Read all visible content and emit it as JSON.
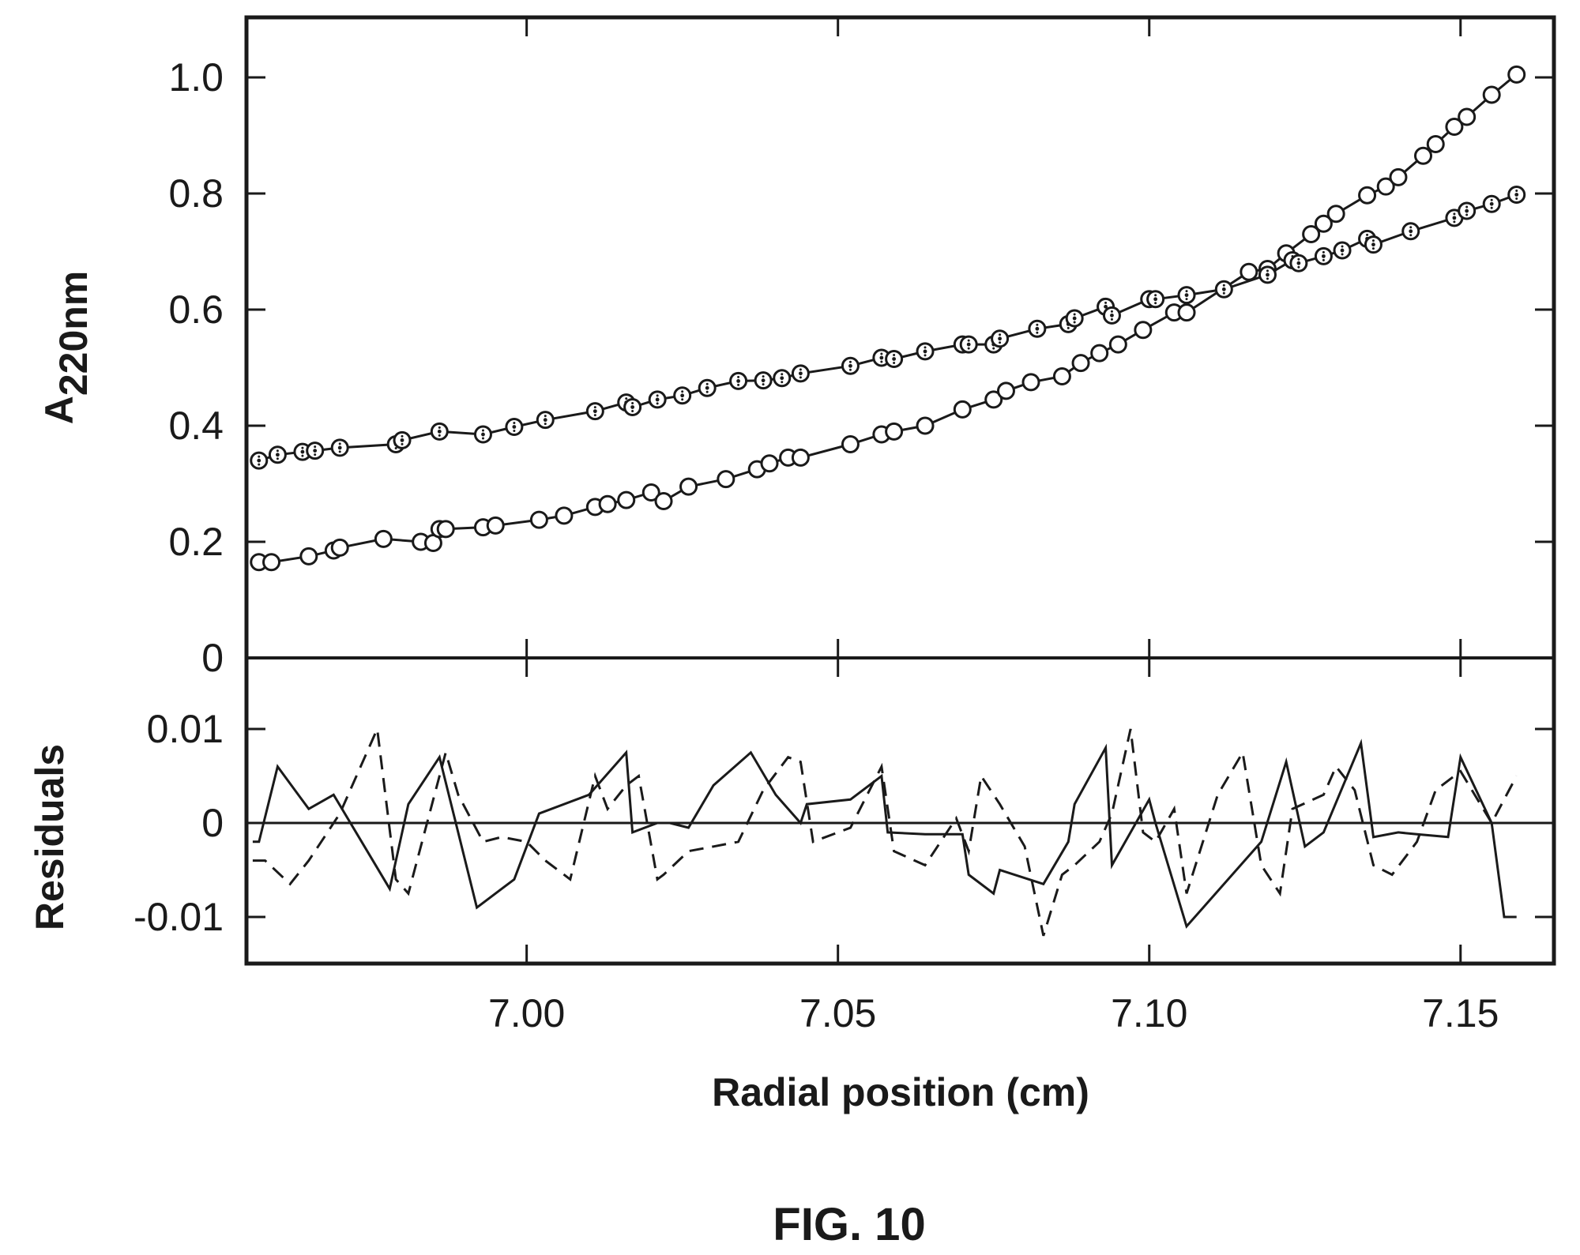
{
  "figure_caption": "FIG. 10",
  "chart_data": [
    {
      "type": "line",
      "panel": "absorbance",
      "xlabel": "Radial position (cm)",
      "ylabel_main": "A",
      "ylabel_sub": "220nm",
      "xlim": [
        6.955,
        7.165
      ],
      "ylim": [
        0,
        1.1
      ],
      "y_ticks": [
        0,
        0.2,
        0.4,
        0.6,
        0.8,
        1.0
      ],
      "y_tick_labels": [
        "0",
        "0.2",
        "0.4",
        "0.6",
        "0.8",
        "1.0"
      ],
      "series": [
        {
          "marker": "open-circle",
          "x": [
            6.957,
            6.959,
            6.965,
            6.969,
            6.97,
            6.977,
            6.983,
            6.985,
            6.986,
            6.987,
            6.993,
            6.995,
            7.002,
            7.006,
            7.011,
            7.013,
            7.016,
            7.02,
            7.022,
            7.026,
            7.032,
            7.037,
            7.039,
            7.042,
            7.044,
            7.052,
            7.057,
            7.059,
            7.064,
            7.07,
            7.075,
            7.077,
            7.081,
            7.086,
            7.089,
            7.092,
            7.095,
            7.099,
            7.104,
            7.106,
            7.116,
            7.119,
            7.122,
            7.126,
            7.128,
            7.13,
            7.135,
            7.138,
            7.14,
            7.144,
            7.146,
            7.149,
            7.151,
            7.155,
            7.159
          ],
          "y": [
            0.165,
            0.165,
            0.175,
            0.185,
            0.19,
            0.205,
            0.2,
            0.198,
            0.222,
            0.222,
            0.225,
            0.228,
            0.238,
            0.245,
            0.26,
            0.265,
            0.272,
            0.285,
            0.27,
            0.295,
            0.308,
            0.325,
            0.335,
            0.345,
            0.345,
            0.368,
            0.385,
            0.39,
            0.4,
            0.428,
            0.445,
            0.46,
            0.475,
            0.485,
            0.508,
            0.525,
            0.54,
            0.565,
            0.595,
            0.595,
            0.665,
            0.67,
            0.697,
            0.73,
            0.748,
            0.765,
            0.797,
            0.812,
            0.828,
            0.865,
            0.885,
            0.915,
            0.932,
            0.97,
            1.005
          ]
        },
        {
          "marker": "dotted-circle",
          "x": [
            6.957,
            6.96,
            6.964,
            6.966,
            6.97,
            6.979,
            6.98,
            6.986,
            6.993,
            6.998,
            7.003,
            7.011,
            7.016,
            7.017,
            7.021,
            7.025,
            7.029,
            7.034,
            7.038,
            7.041,
            7.044,
            7.052,
            7.057,
            7.059,
            7.064,
            7.07,
            7.071,
            7.075,
            7.076,
            7.082,
            7.087,
            7.088,
            7.093,
            7.094,
            7.1,
            7.101,
            7.106,
            7.112,
            7.119,
            7.123,
            7.124,
            7.128,
            7.131,
            7.135,
            7.136,
            7.142,
            7.149,
            7.151,
            7.155,
            7.159
          ],
          "y": [
            0.34,
            0.35,
            0.355,
            0.357,
            0.362,
            0.368,
            0.375,
            0.39,
            0.385,
            0.398,
            0.41,
            0.425,
            0.44,
            0.432,
            0.445,
            0.452,
            0.465,
            0.477,
            0.478,
            0.482,
            0.49,
            0.503,
            0.517,
            0.515,
            0.528,
            0.54,
            0.54,
            0.54,
            0.55,
            0.567,
            0.575,
            0.585,
            0.605,
            0.59,
            0.618,
            0.618,
            0.625,
            0.635,
            0.66,
            0.685,
            0.68,
            0.692,
            0.702,
            0.722,
            0.712,
            0.735,
            0.758,
            0.77,
            0.782,
            0.798
          ]
        }
      ]
    },
    {
      "type": "line",
      "panel": "residuals",
      "xlabel": "Radial position (cm)",
      "ylabel": "Residuals",
      "xlim": [
        6.955,
        7.165
      ],
      "ylim": [
        -0.015,
        0.016
      ],
      "y_ticks": [
        -0.01,
        0,
        0.01
      ],
      "y_tick_labels": [
        "-0.01",
        "0",
        "0.01"
      ],
      "x_ticks": [
        7.0,
        7.05,
        7.1,
        7.15
      ],
      "x_tick_labels": [
        "7.00",
        "7.05",
        "7.10",
        "7.15"
      ],
      "zero_line": true,
      "series": [
        {
          "style": "solid",
          "x": [
            6.956,
            6.957,
            6.96,
            6.965,
            6.969,
            6.978,
            6.981,
            6.986,
            6.992,
            6.998,
            7.002,
            7.01,
            7.016,
            7.017,
            7.021,
            7.023,
            7.026,
            7.03,
            7.036,
            7.04,
            7.044,
            7.045,
            7.052,
            7.057,
            7.058,
            7.064,
            7.07,
            7.071,
            7.075,
            7.076,
            7.083,
            7.087,
            7.088,
            7.093,
            7.094,
            7.1,
            7.101,
            7.106,
            7.118,
            7.122,
            7.125,
            7.128,
            7.134,
            7.136,
            7.14,
            7.143,
            7.148,
            7.15,
            7.155,
            7.157,
            7.159
          ],
          "y": [
            -0.002,
            -0.002,
            0.006,
            0.0015,
            0.003,
            -0.007,
            0.002,
            0.007,
            -0.009,
            -0.006,
            0.001,
            0.003,
            0.0075,
            -0.001,
            0.0,
            0.0,
            -0.0005,
            0.004,
            0.0075,
            0.003,
            0.0,
            0.002,
            0.0025,
            0.005,
            -0.001,
            -0.0012,
            -0.0012,
            -0.0055,
            -0.0075,
            -0.005,
            -0.0065,
            -0.002,
            0.002,
            0.008,
            -0.0045,
            0.0025,
            0.0,
            -0.011,
            -0.002,
            0.0065,
            -0.0025,
            -0.001,
            0.0085,
            -0.0015,
            -0.001,
            -0.0012,
            -0.0015,
            0.007,
            0.0,
            -0.01,
            -0.01
          ]
        },
        {
          "style": "dashed",
          "x": [
            6.956,
            6.958,
            6.962,
            6.965,
            6.968,
            6.97,
            6.976,
            6.979,
            6.981,
            6.987,
            6.989,
            6.993,
            6.996,
            7.0,
            7.003,
            7.007,
            7.011,
            7.013,
            7.016,
            7.018,
            7.021,
            7.022,
            7.026,
            7.03,
            7.034,
            7.038,
            7.042,
            7.044,
            7.046,
            7.052,
            7.057,
            7.059,
            7.064,
            7.069,
            7.071,
            7.073,
            7.076,
            7.08,
            7.083,
            7.086,
            7.088,
            7.092,
            7.094,
            7.097,
            7.099,
            7.101,
            7.104,
            7.106,
            7.111,
            7.115,
            7.118,
            7.121,
            7.123,
            7.128,
            7.13,
            7.133,
            7.136,
            7.139,
            7.143,
            7.146,
            7.15,
            7.155,
            7.159
          ],
          "y": [
            -0.004,
            -0.004,
            -0.0065,
            -0.004,
            -0.001,
            0.001,
            0.01,
            -0.006,
            -0.0075,
            0.0075,
            0.003,
            -0.002,
            -0.0015,
            -0.002,
            -0.004,
            -0.006,
            0.005,
            0.0015,
            0.004,
            0.005,
            -0.006,
            -0.0055,
            -0.003,
            -0.0025,
            -0.002,
            0.0035,
            0.007,
            0.0065,
            -0.002,
            -0.0005,
            0.006,
            -0.003,
            -0.0045,
            0.0005,
            -0.003,
            0.005,
            0.002,
            -0.0025,
            -0.012,
            -0.0055,
            -0.0045,
            -0.002,
            0.001,
            0.01,
            -0.001,
            -0.002,
            0.0015,
            -0.0075,
            0.003,
            0.0075,
            -0.0045,
            -0.0075,
            0.0015,
            0.003,
            0.006,
            0.0035,
            -0.0045,
            -0.0055,
            -0.002,
            0.0035,
            0.0055,
            0.0,
            0.005
          ]
        }
      ]
    }
  ]
}
